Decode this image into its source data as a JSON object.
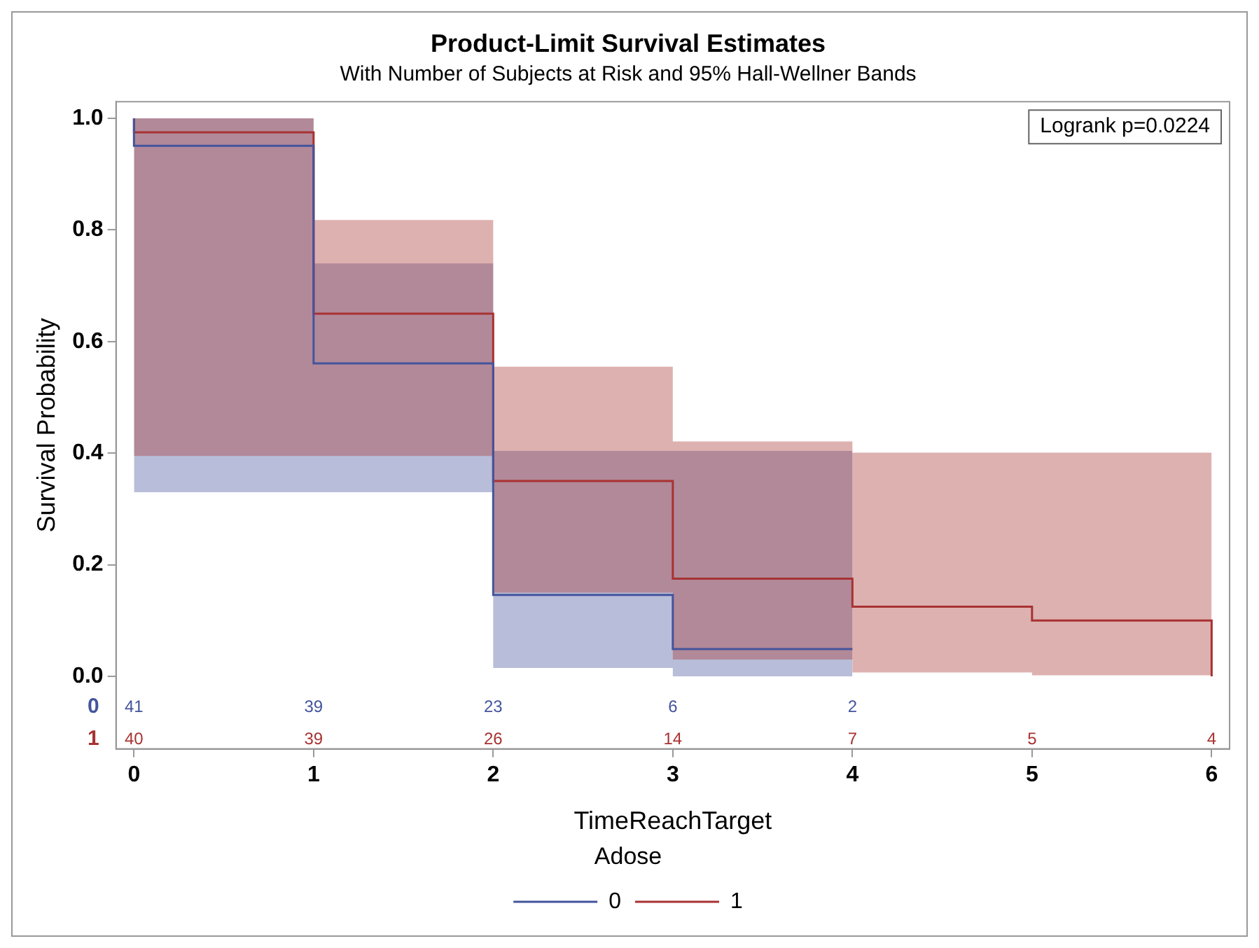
{
  "chart_data": [
    {
      "type": "step",
      "title": "Product-Limit Survival Estimates",
      "subtitle": "With Number of Subjects at Risk and 95% Hall-Wellner Bands",
      "xlabel": "TimeReachTarget",
      "ylabel": "Survival Probability",
      "legend_title": "Adose",
      "legend": "bottom",
      "grid": false,
      "xlim": [
        -0.1,
        6.1
      ],
      "xticks": [
        0,
        1,
        2,
        3,
        4,
        5,
        6
      ],
      "ylim": [
        -0.13,
        1.03
      ],
      "yticks": [
        {
          "value": 0,
          "label": "0.0"
        },
        {
          "value": 0.2,
          "label": "0.2"
        },
        {
          "value": 0.4,
          "label": "0.4"
        },
        {
          "value": 0.6,
          "label": "0.6"
        },
        {
          "value": 0.8,
          "label": "0.8"
        },
        {
          "value": 1,
          "label": "1.0"
        }
      ],
      "series": [
        {
          "name": "0",
          "color": "#44549c",
          "x": [
            0,
            0,
            1,
            2,
            3,
            4
          ],
          "values": [
            1,
            0.951,
            0.561,
            0.146,
            0.049,
            0.049
          ],
          "lower": [
            0.33,
            0.33,
            0.33,
            0.015,
            0.0,
            0.0
          ],
          "upper": [
            1,
            1,
            0.74,
            0.404,
            0.404,
            0.404
          ]
        },
        {
          "name": "1",
          "color": "#a83232",
          "x": [
            0,
            0,
            1,
            2,
            3,
            4,
            5,
            6,
            6
          ],
          "values": [
            1,
            0.975,
            0.65,
            0.35,
            0.175,
            0.125,
            0.1,
            0.1,
            0
          ],
          "lower": [
            0.395,
            0.395,
            0.395,
            0.15,
            0.03,
            0.007,
            0.002,
            0.002,
            0.002
          ],
          "upper": [
            1,
            1,
            0.818,
            0.555,
            0.421,
            0.401,
            0.401,
            0.401,
            0.401
          ]
        }
      ],
      "annotations": [
        "Logrank p=0.0224",
        "41",
        "39",
        "23",
        "6",
        "2",
        "40",
        "39",
        "26",
        "14",
        "7",
        "5",
        "4"
      ]
    }
  ]
}
